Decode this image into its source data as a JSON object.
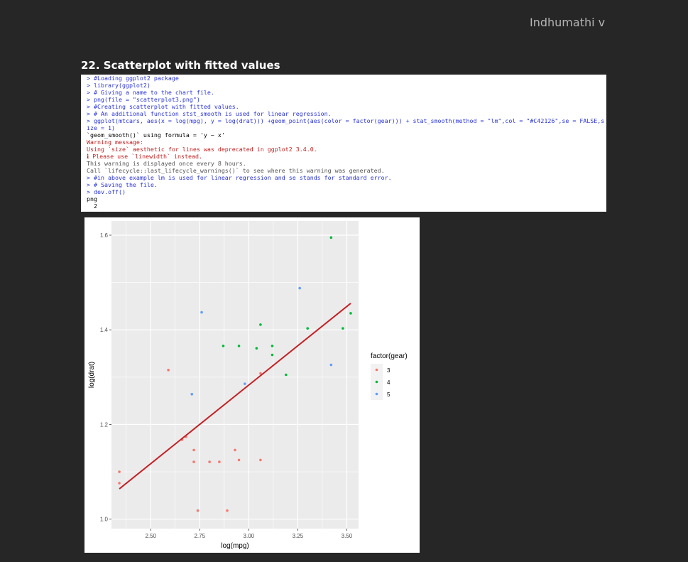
{
  "header": {
    "author": "Indhumathi v",
    "section_title": "22. Scatterplot with fitted values"
  },
  "console": {
    "lines": [
      {
        "type": "cmd",
        "text": "> #Loading ggplot2 package"
      },
      {
        "type": "cmd",
        "text": "> library(ggplot2)"
      },
      {
        "type": "cmd",
        "text": "> # Giving a name to the chart file."
      },
      {
        "type": "cmd",
        "text": "> png(file = \"scatterplot3.png\")"
      },
      {
        "type": "cmd",
        "text": "> #Creating scatterplot with fitted values."
      },
      {
        "type": "cmd",
        "text": "> # An additional function stst_smooth is used for linear regression."
      },
      {
        "type": "cmd",
        "text": "> ggplot(mtcars, aes(x = log(mpg), y = log(drat))) +geom_point(aes(color = factor(gear))) + stat_smooth(method = \"lm\",col = \"#C42126\",se = FALSE,s"
      },
      {
        "type": "cmd",
        "text": "ize = 1)"
      },
      {
        "type": "out",
        "text": "`geom_smooth()` using formula = 'y ~ x'"
      },
      {
        "type": "warn",
        "text": "Warning message:"
      },
      {
        "type": "warn",
        "text": "Using `size` aesthetic for lines was deprecated in ggplot2 3.4.0."
      },
      {
        "type": "warn",
        "text": "ℹ Please use `linewidth` instead."
      },
      {
        "type": "note",
        "text": "This warning is displayed once every 8 hours."
      },
      {
        "type": "note",
        "text": "Call `lifecycle::last_lifecycle_warnings()` to see where this warning was generated."
      },
      {
        "type": "cmd",
        "text": "> #in above example lm is used for linear regression and se stands for standard error."
      },
      {
        "type": "cmd",
        "text": "> # Saving the file."
      },
      {
        "type": "cmd",
        "text": "> dev.off()"
      },
      {
        "type": "out",
        "text": "png "
      },
      {
        "type": "out",
        "text": "  2 "
      }
    ]
  },
  "chart_data": {
    "type": "scatter",
    "title": "",
    "xlabel": "log(mpg)",
    "ylabel": "log(drat)",
    "xlim": [
      2.3,
      3.56
    ],
    "ylim": [
      0.98,
      1.63
    ],
    "x_ticks": [
      2.5,
      2.75,
      3.0,
      3.25,
      3.5
    ],
    "x_tick_labels": [
      "2.50",
      "2.75",
      "3.00",
      "3.25",
      "3.50"
    ],
    "y_ticks": [
      1.0,
      1.2,
      1.4,
      1.6
    ],
    "y_tick_labels": [
      "1.0",
      "1.2",
      "1.4",
      "1.6"
    ],
    "grid": true,
    "panel_background": "#ebebeb",
    "legend": {
      "title": "factor(gear)",
      "position": "right",
      "entries": [
        {
          "label": "3",
          "color": "#F8766D"
        },
        {
          "label": "4",
          "color": "#00BA38"
        },
        {
          "label": "5",
          "color": "#619CFF"
        }
      ]
    },
    "series": [
      {
        "name": "3",
        "color": "#F8766D",
        "points": [
          [
            2.34,
            1.1
          ],
          [
            2.34,
            1.076
          ],
          [
            2.59,
            1.315
          ],
          [
            2.66,
            1.168
          ],
          [
            2.68,
            1.174
          ],
          [
            2.72,
            1.146
          ],
          [
            2.72,
            1.121
          ],
          [
            2.74,
            1.018
          ],
          [
            2.8,
            1.121
          ],
          [
            2.85,
            1.121
          ],
          [
            2.89,
            1.018
          ],
          [
            2.93,
            1.146
          ],
          [
            2.95,
            1.125
          ],
          [
            3.06,
            1.308
          ],
          [
            3.06,
            1.125
          ]
        ]
      },
      {
        "name": "4",
        "color": "#00BA38",
        "points": [
          [
            2.87,
            1.366
          ],
          [
            2.95,
            1.366
          ],
          [
            3.06,
            1.411
          ],
          [
            3.04,
            1.361
          ],
          [
            3.12,
            1.366
          ],
          [
            3.12,
            1.347
          ],
          [
            3.19,
            1.305
          ],
          [
            3.3,
            1.403
          ],
          [
            3.42,
            1.595
          ],
          [
            3.48,
            1.403
          ],
          [
            3.52,
            1.435
          ]
        ]
      },
      {
        "name": "5",
        "color": "#619CFF",
        "points": [
          [
            2.71,
            1.264
          ],
          [
            2.76,
            1.437
          ],
          [
            2.98,
            1.286
          ],
          [
            3.26,
            1.488
          ],
          [
            3.42,
            1.326
          ]
        ]
      }
    ],
    "fit_line": {
      "method": "lm",
      "color": "#C42126",
      "x": [
        2.34,
        3.52
      ],
      "y": [
        1.064,
        1.456
      ]
    }
  }
}
